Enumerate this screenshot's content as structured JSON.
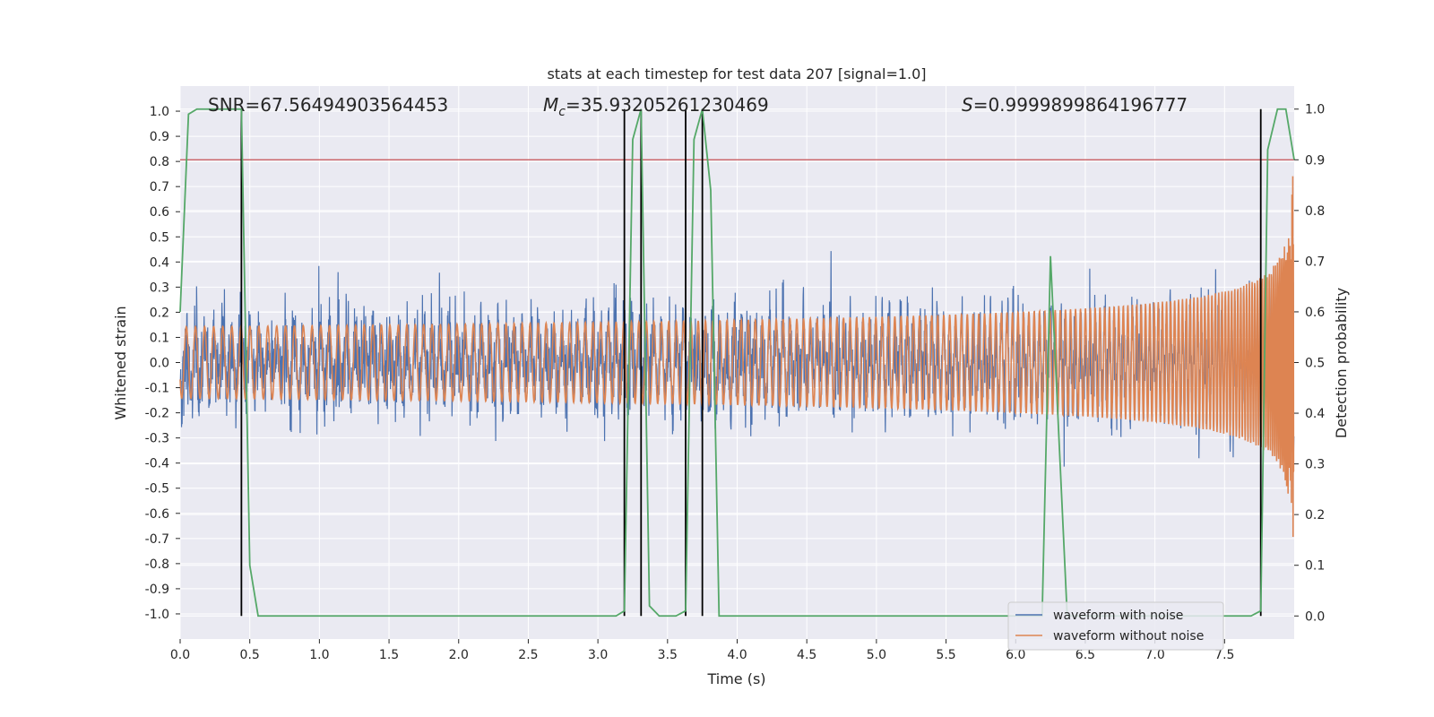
{
  "chart_data": {
    "type": "line",
    "title": "stats at each timestep for test data 207 [signal=1.0]",
    "xlabel": "Time (s)",
    "ylabel": "Whitened strain",
    "y2label": "Detection probability",
    "xlim": [
      0,
      8
    ],
    "ylim": [
      -1.1,
      1.1
    ],
    "y2lim": [
      -0.0455,
      1.0455
    ],
    "x_ticks": [
      "0.0",
      "0.5",
      "1.0",
      "1.5",
      "2.0",
      "2.5",
      "3.0",
      "3.5",
      "4.0",
      "4.5",
      "5.0",
      "5.5",
      "6.0",
      "6.5",
      "7.0",
      "7.5"
    ],
    "y_ticks": [
      "1.0",
      "0.9",
      "0.8",
      "0.7",
      "0.6",
      "0.5",
      "0.4",
      "0.3",
      "0.2",
      "0.1",
      "0.0",
      "-0.1",
      "-0.2",
      "-0.3",
      "-0.4",
      "-0.5",
      "-0.6",
      "-0.7",
      "-0.8",
      "-0.9",
      "-1.0"
    ],
    "y2_ticks": [
      "1.0",
      "0.9",
      "0.8",
      "0.7",
      "0.6",
      "0.5",
      "0.4",
      "0.3",
      "0.2",
      "0.1",
      "0.0"
    ],
    "grid": true,
    "stats": {
      "snr": "SNR=67.56494903564453",
      "mc_symbol": "M",
      "mc_sub": "c",
      "mc_value": "=35.93205261230469",
      "s_symbol": "S",
      "s_value": "=0.9999899864196777"
    },
    "legend": {
      "position": "lower-right",
      "entries": [
        "waveform with noise",
        "waveform without noise"
      ]
    },
    "threshold_detection_probability": 0.9,
    "event_lines_time": [
      0.44,
      3.19,
      3.31,
      3.63,
      3.75,
      7.76
    ],
    "series": [
      {
        "name": "waveform with noise",
        "kind": "noisy strain",
        "noise_amplitude": 0.085,
        "color": "#4c72b0"
      },
      {
        "name": "waveform without noise",
        "kind": "chirp",
        "amplitude_start": 0.0,
        "amplitude_end": 0.95,
        "color": "#dd8452"
      },
      {
        "name": "detection probability",
        "axis": "right",
        "color": "#55a868",
        "x": [
          0.0,
          0.06,
          0.12,
          0.44,
          0.5,
          0.56,
          3.13,
          3.19,
          3.25,
          3.31,
          3.37,
          3.44,
          3.56,
          3.63,
          3.69,
          3.75,
          3.81,
          3.87,
          3.94,
          6.19,
          6.25,
          6.37,
          6.44,
          7.69,
          7.76,
          7.81,
          7.88,
          7.94,
          8.0
        ],
        "y": [
          0.6,
          0.99,
          1.0,
          1.0,
          0.1,
          0.0,
          0.0,
          0.01,
          0.94,
          1.0,
          0.02,
          0.0,
          0.0,
          0.01,
          0.94,
          1.0,
          0.84,
          0.0,
          0.0,
          0.0,
          0.71,
          0.0,
          0.0,
          0.0,
          0.01,
          0.92,
          1.0,
          1.0,
          0.9
        ]
      }
    ],
    "colors": {
      "plot_bg": "#eaeaf2",
      "grid": "#ffffff",
      "noise": "#4c72b0",
      "clean": "#dd8452",
      "prob": "#55a868",
      "threshold": "#c44e52",
      "event": "#000000"
    }
  }
}
